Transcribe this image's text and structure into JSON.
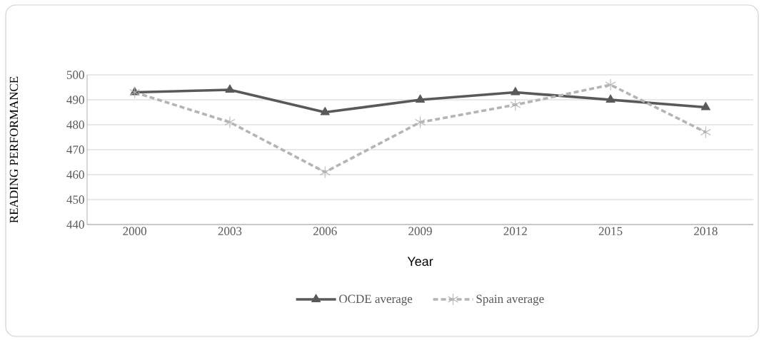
{
  "chart_data": {
    "type": "line",
    "xlabel": "Year",
    "ylabel": "READING PERFORMANCE",
    "categories": [
      "2000",
      "2003",
      "2006",
      "2009",
      "2012",
      "2015",
      "2018"
    ],
    "series": [
      {
        "name": "OCDE average",
        "color": "#595959",
        "marker": "triangle",
        "line_style": "solid",
        "values": [
          493,
          494,
          485,
          490,
          493,
          490,
          487
        ]
      },
      {
        "name": "Spain average",
        "color": "#b4b4b4",
        "marker": "cross",
        "line_style": "dashed",
        "values": [
          493,
          481,
          461,
          481,
          488,
          496,
          477
        ]
      }
    ],
    "ylim": [
      440,
      500
    ],
    "yticks": [
      440,
      450,
      460,
      470,
      480,
      490,
      500
    ],
    "grid": "y",
    "legend": "bottom"
  }
}
